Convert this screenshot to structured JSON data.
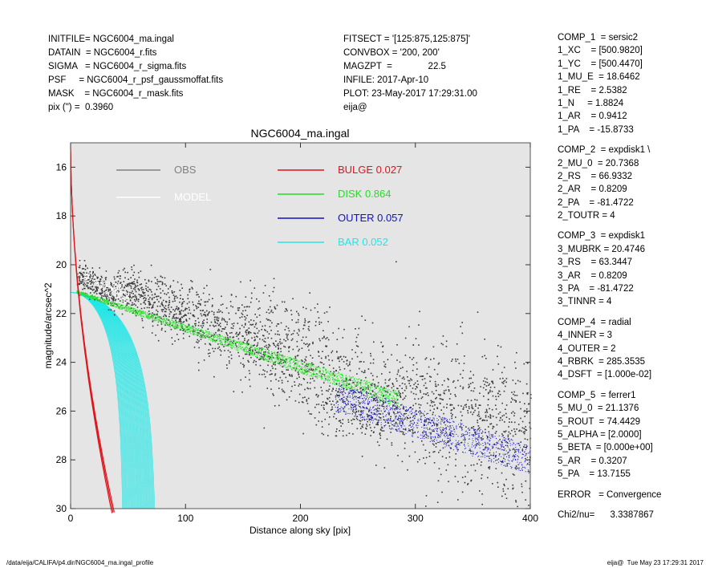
{
  "header_left": [
    "INITFILE= NGC6004_ma.ingal",
    "DATAIN  = NGC6004_r.fits",
    "SIGMA   = NGC6004_r_sigma.fits",
    "PSF     = NGC6004_r_psf_gaussmoffat.fits",
    "MASK    = NGC6004_r_mask.fits",
    "pix (\") =  0.3960"
  ],
  "header_mid": [
    "FITSECT = '[125:875,125:875]'",
    "CONVBOX = '200, 200'",
    "MAGZPT  =              22.5",
    "INFILE: 2017-Apr-10",
    "PLOT: 23-May-2017 17:29:31.00",
    "eija@"
  ],
  "header_right": {
    "comp1": [
      "COMP_1  = sersic2",
      "1_XC    = [500.9820]",
      "1_YC    = [500.4470]",
      "1_MU_E  = 18.6462",
      "1_RE    = 2.5382",
      "1_N     = 1.8824",
      "1_AR    = 0.9412",
      "1_PA    = -15.8733"
    ],
    "comp2": [
      "COMP_2  = expdisk1 \\",
      "2_MU_0  = 20.7368",
      "2_RS    = 66.9332",
      "2_AR    = 0.8209",
      "2_PA    = -81.4722",
      "2_TOUTR = 4"
    ],
    "comp3": [
      "COMP_3  = expdisk1",
      "3_MUBRK = 20.4746",
      "3_RS    = 63.3447",
      "3_AR    = 0.8209",
      "3_PA    = -81.4722",
      "3_TINNR = 4"
    ],
    "comp4": [
      "COMP_4  = radial",
      "4_INNER = 3",
      "4_OUTER = 2",
      "4_RBRK  = 285.3535",
      "4_DSFT  = [1.000e-02]"
    ],
    "comp5": [
      "COMP_5  = ferrer1",
      "5_MU_0  = 21.1376",
      "5_ROUT  = 74.4429",
      "5_ALPHA = [2.0000]",
      "5_BETA  = [0.000e+00]",
      "5_AR    = 0.3207",
      "5_PA    = 13.7155"
    ],
    "error": "ERROR   = Convergence",
    "chi2": "Chi2/nu=      3.3387867"
  },
  "footer_left": "/data/eija/CALIFA/p4.dir/NGC6004_ma.ingal_profile",
  "footer_right": "eija@  Tue May 23 17:29:31 2017",
  "chart_data": {
    "type": "scatter",
    "title": "NGC6004_ma.ingal",
    "xlabel": "Distance along sky [pix]",
    "ylabel": "magnitude/arcsec^2",
    "xlim": [
      0,
      400
    ],
    "ylim": [
      30,
      15
    ],
    "y_inverted": true,
    "x_ticks": [
      0,
      100,
      200,
      300,
      400
    ],
    "y_ticks": [
      16,
      18,
      20,
      22,
      24,
      26,
      28,
      30
    ],
    "grid": false,
    "background": "#e5e5e5",
    "legend_placement": "top",
    "series": [
      {
        "name": "OBS",
        "color": "#808080",
        "fraction": ""
      },
      {
        "name": "MODEL",
        "color": "#ffffff",
        "fraction": ""
      },
      {
        "name": "BULGE",
        "color": "#e0141b",
        "fraction": "0.027"
      },
      {
        "name": "DISK",
        "color": "#22e022",
        "fraction": "0.864"
      },
      {
        "name": "OUTER",
        "color": "#1010c8",
        "fraction": "0.057"
      },
      {
        "name": "BAR",
        "color": "#22e6e6",
        "fraction": "0.052"
      }
    ],
    "components": {
      "bulge": {
        "mu_e": 18.6462,
        "re": 2.5382,
        "n": 1.8824
      },
      "disk": {
        "x": [
          5,
          285
        ],
        "y_center": [
          21.1,
          25.5
        ],
        "y_spread_end": 0.35
      },
      "outer": {
        "x": [
          230,
          400
        ],
        "y_center": [
          25.4,
          28.0
        ],
        "y_spread": 0.6
      },
      "bar": {
        "mu_0": 21.1376,
        "rout": 74.4429,
        "alpha": 2.0
      }
    },
    "obs_trend": {
      "x": [
        5,
        400
      ],
      "y": [
        20.2,
        27.6
      ],
      "scatter_grows_to": 1.6
    }
  }
}
